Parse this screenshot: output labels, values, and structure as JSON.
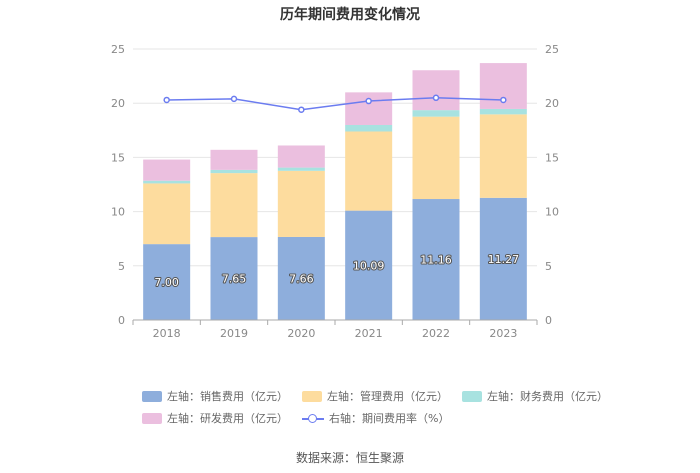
{
  "chart_data": {
    "type": "bar",
    "title": "历年期间费用变化情况",
    "categories": [
      "2018",
      "2019",
      "2020",
      "2021",
      "2022",
      "2023"
    ],
    "series": [
      {
        "name": "左轴：销售费用（亿元）",
        "axis": "left",
        "color": "#8eaedc",
        "values": [
          7.0,
          7.65,
          7.66,
          10.09,
          11.16,
          11.27
        ],
        "labels": [
          "7.00",
          "7.65",
          "7.66",
          "10.09",
          "11.16",
          "11.27"
        ]
      },
      {
        "name": "左轴：管理费用（亿元）",
        "axis": "left",
        "color": "#fddc9e",
        "values": [
          5.6,
          5.9,
          6.1,
          7.3,
          7.6,
          7.7
        ]
      },
      {
        "name": "左轴：财务费用（亿元）",
        "axis": "left",
        "color": "#a8e2e0",
        "values": [
          0.25,
          0.3,
          0.3,
          0.6,
          0.6,
          0.5
        ]
      },
      {
        "name": "左轴：研发费用（亿元）",
        "axis": "left",
        "color": "#ebbfdf",
        "values": [
          1.95,
          1.85,
          2.04,
          3.01,
          3.68,
          4.23
        ]
      },
      {
        "name": "右轴：期间费用率（%）",
        "axis": "right",
        "type": "line",
        "color": "#6b7cf0",
        "values": [
          20.3,
          20.4,
          19.4,
          20.2,
          20.5,
          20.3
        ]
      }
    ],
    "yLeft": {
      "min": 0,
      "max": 25,
      "ticks": [
        "0",
        "5",
        "10",
        "15",
        "20",
        "25"
      ]
    },
    "yRight": {
      "min": 0,
      "max": 25,
      "ticks": [
        "0",
        "5",
        "10",
        "15",
        "20",
        "25"
      ]
    },
    "grid": true,
    "legend_position": "bottom"
  },
  "source": "数据来源：恒生聚源"
}
